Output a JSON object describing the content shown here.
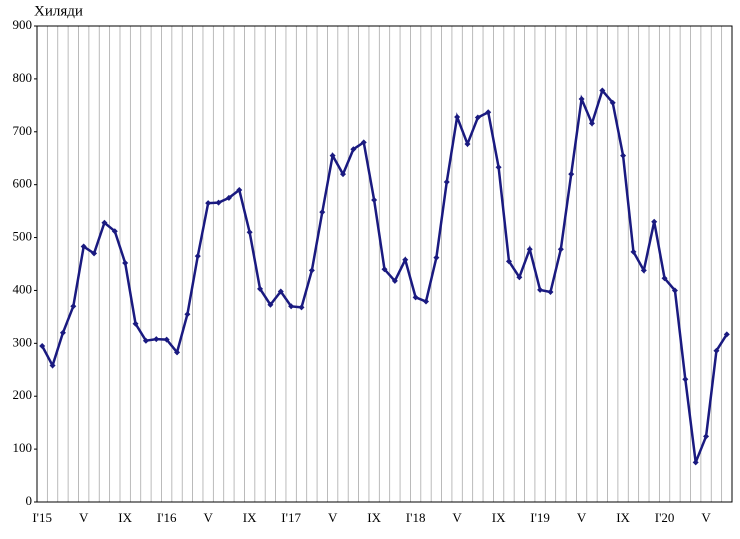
{
  "chart_data": {
    "type": "line",
    "y_label": "Хиляди",
    "categories": [
      "I'15",
      null,
      null,
      null,
      "V",
      null,
      null,
      null,
      "IX",
      null,
      null,
      null,
      "I'16",
      null,
      null,
      null,
      "V",
      null,
      null,
      null,
      "IX",
      null,
      null,
      null,
      "I'17",
      null,
      null,
      null,
      "V",
      null,
      null,
      null,
      "IX",
      null,
      null,
      null,
      "I'18",
      null,
      null,
      null,
      "V",
      null,
      null,
      null,
      "IX",
      null,
      null,
      null,
      "I'19",
      null,
      null,
      null,
      "V",
      null,
      null,
      null,
      "IX",
      null,
      null,
      null,
      "I'20",
      null,
      null,
      null,
      "V",
      null,
      null
    ],
    "series": [
      {
        "color": "#1a1a80",
        "values": [
          295,
          258,
          320,
          370,
          483,
          470,
          528,
          512,
          452,
          337,
          305,
          308,
          307,
          283,
          355,
          465,
          565,
          566,
          575,
          590,
          510,
          403,
          373,
          398,
          370,
          368,
          438,
          548,
          655,
          620,
          667,
          680,
          571,
          440,
          418,
          458,
          387,
          379,
          462,
          605,
          728,
          677,
          727,
          737,
          633,
          455,
          425,
          478,
          401,
          397,
          478,
          620,
          762,
          716,
          778,
          755,
          655,
          473,
          438,
          530,
          423,
          400,
          232,
          75,
          124,
          286,
          317
        ]
      }
    ],
    "ylim": [
      0,
      900
    ],
    "yticks": [
      0,
      100,
      200,
      300,
      400,
      500,
      600,
      700,
      800,
      900
    ],
    "grid": true
  }
}
